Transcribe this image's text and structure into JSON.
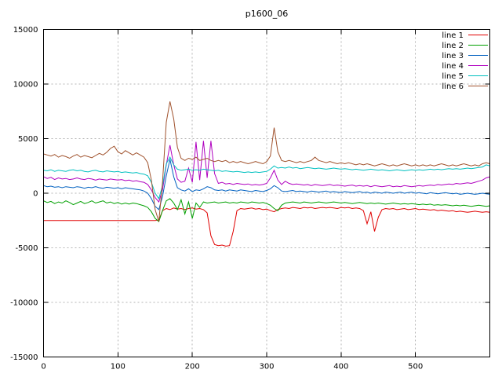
{
  "chart_data": {
    "type": "line",
    "title": "p1600_06",
    "xlabel": "",
    "ylabel": "",
    "xlim": [
      0,
      600
    ],
    "ylim": [
      -15000,
      15000
    ],
    "x_ticks": [
      0,
      100,
      200,
      300,
      400,
      500
    ],
    "y_ticks": [
      -15000,
      -10000,
      -5000,
      0,
      5000,
      10000,
      15000
    ],
    "grid": true,
    "legend_position": "top-right",
    "x_start": 0,
    "x_step": 5,
    "series": [
      {
        "name": "line 1",
        "color": "#e00000",
        "values": [
          -2500,
          -2500,
          -2500,
          -2500,
          -2500,
          -2500,
          -2500,
          -2500,
          -2500,
          -2500,
          -2500,
          -2500,
          -2500,
          -2500,
          -2500,
          -2500,
          -2500,
          -2500,
          -2500,
          -2500,
          -2500,
          -2500,
          -2500,
          -2500,
          -2500,
          -2500,
          -2500,
          -2500,
          -2500,
          -2500,
          -2500,
          -2450,
          -1600,
          -1400,
          -1500,
          -1350,
          -1450,
          -1400,
          -1500,
          -1400,
          -1350,
          -1450,
          -1400,
          -1500,
          -1800,
          -3900,
          -4700,
          -4800,
          -4750,
          -4850,
          -4800,
          -3500,
          -1600,
          -1400,
          -1450,
          -1400,
          -1350,
          -1450,
          -1400,
          -1500,
          -1450,
          -1600,
          -1700,
          -1500,
          -1400,
          -1350,
          -1400,
          -1300,
          -1350,
          -1400,
          -1300,
          -1350,
          -1300,
          -1400,
          -1350,
          -1300,
          -1350,
          -1300,
          -1350,
          -1400,
          -1300,
          -1350,
          -1300,
          -1400,
          -1350,
          -1400,
          -1600,
          -2800,
          -1700,
          -3500,
          -2200,
          -1500,
          -1400,
          -1450,
          -1400,
          -1500,
          -1450,
          -1400,
          -1500,
          -1450,
          -1400,
          -1500,
          -1450,
          -1500,
          -1550,
          -1500,
          -1600,
          -1550,
          -1600,
          -1650,
          -1600,
          -1700,
          -1650,
          -1700,
          -1750,
          -1700,
          -1650,
          -1700,
          -1750,
          -1700,
          -1750
        ]
      },
      {
        "name": "line 2",
        "color": "#00a000",
        "values": [
          -700,
          -850,
          -750,
          -950,
          -800,
          -900,
          -700,
          -850,
          -1050,
          -900,
          -750,
          -950,
          -850,
          -700,
          -900,
          -800,
          -700,
          -900,
          -800,
          -950,
          -850,
          -1000,
          -900,
          -1000,
          -900,
          -950,
          -1050,
          -1150,
          -1300,
          -1700,
          -2300,
          -2600,
          -1600,
          -700,
          -500,
          -900,
          -1500,
          -600,
          -1900,
          -800,
          -2300,
          -900,
          -1300,
          -800,
          -900,
          -850,
          -800,
          -900,
          -850,
          -800,
          -900,
          -850,
          -900,
          -800,
          -850,
          -900,
          -800,
          -850,
          -900,
          -850,
          -950,
          -1100,
          -1400,
          -1600,
          -1100,
          -900,
          -850,
          -800,
          -850,
          -900,
          -800,
          -850,
          -900,
          -850,
          -800,
          -850,
          -900,
          -850,
          -800,
          -850,
          -900,
          -850,
          -900,
          -950,
          -900,
          -850,
          -900,
          -950,
          -900,
          -950,
          -900,
          -950,
          -1000,
          -950,
          -900,
          -950,
          -1000,
          -950,
          -1000,
          -950,
          -1000,
          -1050,
          -1000,
          -1050,
          -1000,
          -1100,
          -1050,
          -1100,
          -1050,
          -1100,
          -1150,
          -1100,
          -1150,
          -1100,
          -1150,
          -1200,
          -1150,
          -1100,
          -1150,
          -1200,
          -1150
        ]
      },
      {
        "name": "line 3",
        "color": "#0060c0",
        "values": [
          700,
          600,
          650,
          550,
          600,
          500,
          600,
          550,
          500,
          600,
          550,
          450,
          550,
          500,
          600,
          500,
          450,
          550,
          500,
          450,
          500,
          400,
          500,
          450,
          400,
          350,
          300,
          200,
          0,
          -500,
          -1200,
          -1500,
          -300,
          1600,
          3100,
          1500,
          500,
          300,
          200,
          400,
          150,
          300,
          250,
          400,
          600,
          500,
          300,
          250,
          300,
          200,
          300,
          250,
          200,
          300,
          250,
          200,
          150,
          250,
          200,
          150,
          250,
          400,
          700,
          500,
          200,
          150,
          200,
          250,
          150,
          200,
          150,
          100,
          200,
          150,
          100,
          150,
          200,
          100,
          150,
          100,
          50,
          150,
          100,
          50,
          100,
          150,
          50,
          100,
          0,
          100,
          50,
          0,
          100,
          50,
          0,
          50,
          100,
          0,
          50,
          100,
          0,
          50,
          0,
          -50,
          50,
          0,
          -50,
          0,
          50,
          0,
          -50,
          0,
          -100,
          -50,
          0,
          -50,
          -100,
          -50,
          0,
          -50,
          -100
        ]
      },
      {
        "name": "line 4",
        "color": "#b000c0",
        "values": [
          1500,
          1350,
          1450,
          1250,
          1400,
          1300,
          1350,
          1250,
          1300,
          1400,
          1300,
          1250,
          1350,
          1300,
          1200,
          1300,
          1250,
          1200,
          1300,
          1250,
          1200,
          1250,
          1150,
          1200,
          1100,
          1150,
          1050,
          1000,
          800,
          300,
          -400,
          -800,
          300,
          2600,
          4400,
          2600,
          1300,
          1000,
          1100,
          2300,
          1000,
          4700,
          1200,
          4800,
          1400,
          4800,
          1800,
          900,
          1000,
          850,
          900,
          800,
          900,
          850,
          800,
          850,
          750,
          800,
          750,
          800,
          900,
          1400,
          2100,
          1200,
          800,
          1100,
          900,
          800,
          850,
          800,
          750,
          800,
          700,
          800,
          750,
          700,
          750,
          800,
          700,
          750,
          700,
          650,
          700,
          750,
          650,
          700,
          650,
          700,
          600,
          700,
          650,
          600,
          650,
          700,
          600,
          650,
          600,
          700,
          650,
          600,
          650,
          700,
          650,
          700,
          750,
          700,
          800,
          750,
          800,
          850,
          800,
          900,
          850,
          900,
          950,
          900,
          1000,
          1100,
          1200,
          1400,
          1500
        ]
      },
      {
        "name": "line 5",
        "color": "#00c0c0",
        "values": [
          2100,
          2050,
          2150,
          2000,
          2100,
          2050,
          2000,
          2100,
          2150,
          2050,
          2100,
          2000,
          1950,
          2050,
          2100,
          2000,
          1950,
          2050,
          2000,
          1950,
          2000,
          1900,
          1950,
          1900,
          1850,
          1900,
          1800,
          1750,
          1600,
          1000,
          0,
          -500,
          700,
          2700,
          3300,
          2600,
          2200,
          2100,
          2150,
          2200,
          2100,
          2150,
          2100,
          2200,
          2150,
          2100,
          2050,
          2100,
          2000,
          2050,
          2000,
          1950,
          2000,
          1950,
          1900,
          1950,
          1900,
          1950,
          1900,
          1950,
          2000,
          2200,
          2500,
          2300,
          2350,
          2300,
          2400,
          2300,
          2350,
          2250,
          2300,
          2350,
          2300,
          2250,
          2300,
          2250,
          2200,
          2250,
          2300,
          2250,
          2200,
          2250,
          2200,
          2150,
          2200,
          2150,
          2100,
          2150,
          2200,
          2150,
          2100,
          2150,
          2100,
          2050,
          2100,
          2150,
          2100,
          2050,
          2100,
          2150,
          2100,
          2150,
          2100,
          2150,
          2200,
          2150,
          2200,
          2150,
          2200,
          2250,
          2200,
          2250,
          2200,
          2250,
          2300,
          2250,
          2300,
          2350,
          2400,
          2600,
          2500
        ]
      },
      {
        "name": "line 6",
        "color": "#a0522d",
        "values": [
          3600,
          3500,
          3400,
          3550,
          3300,
          3450,
          3350,
          3200,
          3400,
          3550,
          3300,
          3450,
          3350,
          3250,
          3450,
          3650,
          3500,
          3750,
          4100,
          4300,
          3800,
          3600,
          3900,
          3700,
          3500,
          3700,
          3500,
          3300,
          2800,
          1200,
          -1500,
          -2600,
          1000,
          6500,
          8400,
          6800,
          4200,
          3200,
          3000,
          3200,
          3100,
          3300,
          3000,
          3100,
          3200,
          3000,
          2900,
          3000,
          2900,
          3000,
          2800,
          2900,
          2800,
          2900,
          2800,
          2700,
          2800,
          2900,
          2800,
          2700,
          2900,
          3400,
          6000,
          3800,
          3000,
          2900,
          3000,
          2900,
          2800,
          2900,
          2800,
          2900,
          3000,
          3300,
          3000,
          2900,
          2800,
          2900,
          2800,
          2700,
          2800,
          2700,
          2800,
          2700,
          2600,
          2700,
          2600,
          2700,
          2600,
          2500,
          2600,
          2700,
          2600,
          2500,
          2600,
          2500,
          2600,
          2700,
          2600,
          2500,
          2600,
          2500,
          2600,
          2500,
          2600,
          2500,
          2600,
          2700,
          2600,
          2500,
          2600,
          2500,
          2600,
          2700,
          2600,
          2500,
          2600,
          2500,
          2700,
          2800,
          2700
        ]
      }
    ]
  }
}
